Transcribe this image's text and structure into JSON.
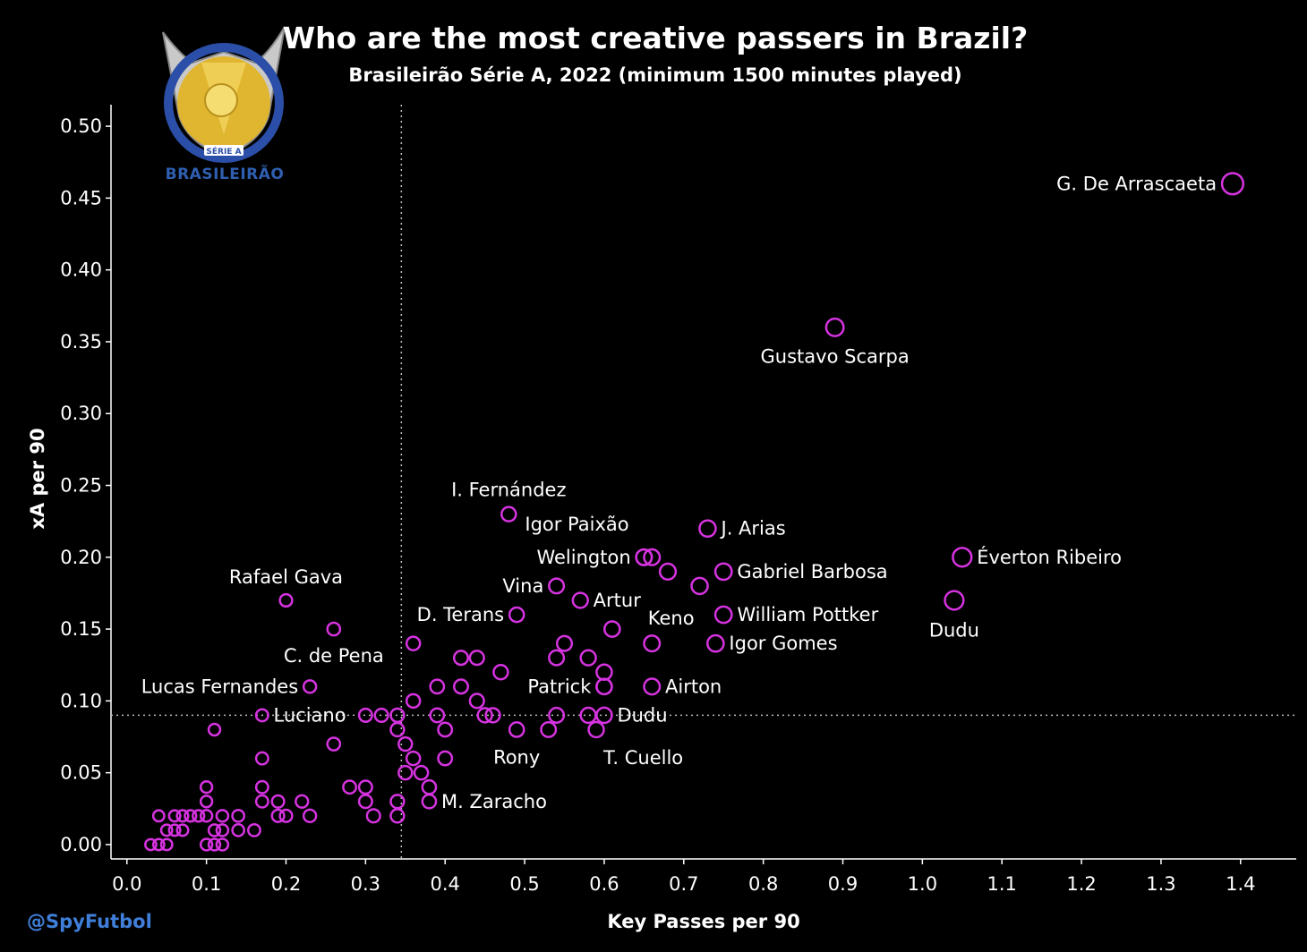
{
  "title": "Who are the most creative passers in Brazil?",
  "subtitle": "Brasileirão Série A, 2022 (minimum 1500 minutes played)",
  "credit": "@SpyFutbol",
  "logo": {
    "icon": "brasileirao-trophy-logo",
    "text": "BRASILEIRÃO",
    "badge": "SÉRIE A"
  },
  "colors": {
    "background": "#000000",
    "marker": "#d633e0",
    "reference_line": "#bbbbbb",
    "credit": "#3f7fd9"
  },
  "chart_data": {
    "type": "scatter",
    "xlabel": "Key Passes per 90",
    "ylabel": "xA per 90",
    "xlim": [
      -0.02,
      1.47
    ],
    "ylim": [
      -0.01,
      0.515
    ],
    "xticks": [
      "0.0",
      "0.1",
      "0.2",
      "0.3",
      "0.4",
      "0.5",
      "0.6",
      "0.7",
      "0.8",
      "0.9",
      "1.0",
      "1.1",
      "1.2",
      "1.3",
      "1.4"
    ],
    "yticks": [
      "0.00",
      "0.05",
      "0.10",
      "0.15",
      "0.20",
      "0.25",
      "0.30",
      "0.35",
      "0.40",
      "0.45",
      "0.50"
    ],
    "reference_lines": {
      "x_mean": 0.345,
      "y_mean": 0.09
    },
    "labeled_points": [
      {
        "x": 1.39,
        "y": 0.46,
        "label": "G. De Arrascaeta",
        "pos": "left"
      },
      {
        "x": 0.89,
        "y": 0.36,
        "label": "Gustavo Scarpa",
        "pos": "below"
      },
      {
        "x": 0.48,
        "y": 0.23,
        "label": "I. Fernández",
        "pos": "above"
      },
      {
        "x": 0.73,
        "y": 0.22,
        "label": "J. Arias",
        "pos": "right"
      },
      {
        "x": 0.65,
        "y": 0.2,
        "label": "Igor Paixão",
        "pos": "upleft"
      },
      {
        "x": 0.65,
        "y": 0.2,
        "label": "Welington",
        "pos": "left"
      },
      {
        "x": 1.05,
        "y": 0.2,
        "label": "Éverton Ribeiro",
        "pos": "right"
      },
      {
        "x": 0.75,
        "y": 0.19,
        "label": "Gabriel Barbosa",
        "pos": "right"
      },
      {
        "x": 0.2,
        "y": 0.17,
        "label": "Rafael Gava",
        "pos": "above"
      },
      {
        "x": 0.54,
        "y": 0.18,
        "label": "Vina",
        "pos": "left"
      },
      {
        "x": 0.57,
        "y": 0.17,
        "label": "Artur",
        "pos": "right"
      },
      {
        "x": 0.49,
        "y": 0.16,
        "label": "D. Terans",
        "pos": "left"
      },
      {
        "x": 0.75,
        "y": 0.16,
        "label": "William Pottker",
        "pos": "right"
      },
      {
        "x": 0.72,
        "y": 0.18,
        "label": "Keno",
        "pos": "belowleft"
      },
      {
        "x": 1.04,
        "y": 0.17,
        "label": "Dudu",
        "pos": "below"
      },
      {
        "x": 0.74,
        "y": 0.14,
        "label": "Igor Gomes",
        "pos": "right"
      },
      {
        "x": 0.26,
        "y": 0.15,
        "label": "C. de Pena",
        "pos": "below"
      },
      {
        "x": 0.23,
        "y": 0.11,
        "label": "Lucas Fernandes",
        "pos": "left"
      },
      {
        "x": 0.6,
        "y": 0.11,
        "label": "Patrick",
        "pos": "left"
      },
      {
        "x": 0.66,
        "y": 0.11,
        "label": "Airton",
        "pos": "right"
      },
      {
        "x": 0.17,
        "y": 0.09,
        "label": "Luciano",
        "pos": "right"
      },
      {
        "x": 0.6,
        "y": 0.09,
        "label": "Dudu",
        "pos": "right"
      },
      {
        "x": 0.59,
        "y": 0.08,
        "label": "T. Cuello",
        "pos": "belowright"
      },
      {
        "x": 0.49,
        "y": 0.08,
        "label": "Rony",
        "pos": "below"
      },
      {
        "x": 0.38,
        "y": 0.03,
        "label": "M. Zaracho",
        "pos": "right"
      }
    ],
    "other_points": [
      [
        0.66,
        0.2
      ],
      [
        0.68,
        0.19
      ],
      [
        0.61,
        0.15
      ],
      [
        0.66,
        0.14
      ],
      [
        0.55,
        0.14
      ],
      [
        0.58,
        0.13
      ],
      [
        0.54,
        0.13
      ],
      [
        0.36,
        0.14
      ],
      [
        0.42,
        0.13
      ],
      [
        0.44,
        0.13
      ],
      [
        0.47,
        0.12
      ],
      [
        0.6,
        0.12
      ],
      [
        0.6,
        0.11
      ],
      [
        0.39,
        0.11
      ],
      [
        0.42,
        0.11
      ],
      [
        0.36,
        0.1
      ],
      [
        0.44,
        0.1
      ],
      [
        0.45,
        0.09
      ],
      [
        0.46,
        0.09
      ],
      [
        0.39,
        0.09
      ],
      [
        0.54,
        0.09
      ],
      [
        0.58,
        0.09
      ],
      [
        0.53,
        0.08
      ],
      [
        0.4,
        0.08
      ],
      [
        0.34,
        0.09
      ],
      [
        0.34,
        0.08
      ],
      [
        0.3,
        0.09
      ],
      [
        0.32,
        0.09
      ],
      [
        0.35,
        0.07
      ],
      [
        0.36,
        0.06
      ],
      [
        0.37,
        0.05
      ],
      [
        0.35,
        0.05
      ],
      [
        0.4,
        0.06
      ],
      [
        0.38,
        0.04
      ],
      [
        0.28,
        0.04
      ],
      [
        0.3,
        0.04
      ],
      [
        0.3,
        0.03
      ],
      [
        0.34,
        0.03
      ],
      [
        0.34,
        0.02
      ],
      [
        0.31,
        0.02
      ],
      [
        0.26,
        0.07
      ],
      [
        0.11,
        0.08
      ],
      [
        0.17,
        0.06
      ],
      [
        0.17,
        0.04
      ],
      [
        0.17,
        0.03
      ],
      [
        0.19,
        0.03
      ],
      [
        0.22,
        0.03
      ],
      [
        0.19,
        0.02
      ],
      [
        0.2,
        0.02
      ],
      [
        0.23,
        0.02
      ],
      [
        0.1,
        0.04
      ],
      [
        0.1,
        0.03
      ],
      [
        0.04,
        0.02
      ],
      [
        0.06,
        0.02
      ],
      [
        0.07,
        0.02
      ],
      [
        0.08,
        0.02
      ],
      [
        0.09,
        0.02
      ],
      [
        0.1,
        0.02
      ],
      [
        0.12,
        0.02
      ],
      [
        0.14,
        0.02
      ],
      [
        0.05,
        0.01
      ],
      [
        0.06,
        0.01
      ],
      [
        0.07,
        0.01
      ],
      [
        0.11,
        0.01
      ],
      [
        0.12,
        0.01
      ],
      [
        0.14,
        0.01
      ],
      [
        0.16,
        0.01
      ],
      [
        0.03,
        0.0
      ],
      [
        0.04,
        0.0
      ],
      [
        0.05,
        0.0
      ],
      [
        0.1,
        0.0
      ],
      [
        0.11,
        0.0
      ],
      [
        0.12,
        0.0
      ]
    ]
  }
}
